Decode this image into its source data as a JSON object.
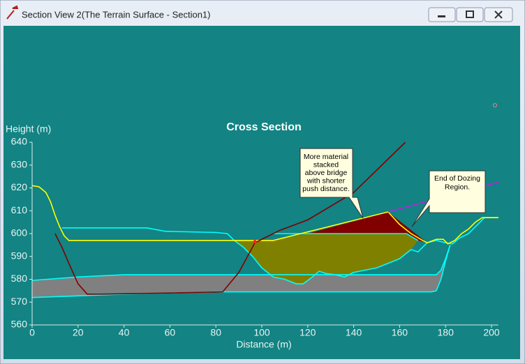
{
  "window": {
    "title": "Section View 2(The Terrain Surface - Section1)"
  },
  "chart_data": {
    "type": "line",
    "title": "Cross Section",
    "x_label": "Distance (m)",
    "y_label": "Height (m)",
    "xlim": [
      0,
      203
    ],
    "ylim": [
      560,
      640
    ],
    "xticks": [
      0,
      20,
      40,
      60,
      80,
      100,
      120,
      140,
      160,
      180,
      200
    ],
    "yticks": [
      560,
      570,
      580,
      590,
      600,
      610,
      620,
      630,
      640
    ],
    "areas": [
      {
        "color": "#808080",
        "x": [
          0,
          20,
          40,
          176,
          178,
          180,
          182,
          180,
          178,
          176,
          174,
          80,
          40,
          0
        ],
        "values": [
          579.5,
          581,
          582,
          582,
          584,
          589,
          595,
          588,
          580,
          575,
          574.5,
          574.5,
          573.5,
          572
        ]
      },
      {
        "color": "#808000",
        "x": [
          86,
          105,
          120,
          163,
          168,
          165,
          160,
          155,
          150,
          145,
          140,
          136,
          132,
          128,
          125,
          122,
          118,
          115,
          110,
          105,
          100,
          96,
          92,
          88
        ],
        "values": [
          597,
          597,
          600,
          600,
          597,
          593,
          589,
          587,
          585,
          584,
          583,
          581,
          582,
          582.5,
          583.5,
          581,
          578,
          578,
          580,
          581,
          585,
          590,
          594,
          597
        ]
      },
      {
        "color": "#800000",
        "x": [
          120,
          155,
          172,
          168,
          163
        ],
        "values": [
          600,
          609.5,
          596,
          597,
          600
        ]
      }
    ],
    "series": [
      {
        "color": "#00ffff",
        "x": [
          0,
          20,
          40,
          176,
          178,
          180,
          182
        ],
        "values": [
          579.5,
          581,
          582,
          582,
          584,
          589,
          595
        ]
      },
      {
        "color": "#00ffff",
        "x": [
          0,
          40,
          80,
          174,
          176,
          178,
          180,
          182
        ],
        "values": [
          572,
          573.5,
          574.5,
          574.5,
          575,
          580,
          588,
          595
        ]
      },
      {
        "color": "#00ffff",
        "x": [
          105,
          163,
          168
        ],
        "values": [
          600,
          600,
          597
        ]
      },
      {
        "color": "#00ffff",
        "x": [
          13,
          50,
          58,
          80,
          85,
          88,
          92,
          96,
          100,
          105,
          110,
          115,
          118,
          122,
          125,
          128,
          132,
          136,
          140,
          145,
          150,
          155,
          160,
          165,
          168,
          172,
          176,
          180,
          183,
          186,
          190,
          194,
          197,
          200,
          203
        ],
        "values": [
          602.5,
          602.5,
          601,
          600.5,
          600,
          597,
          594,
          590,
          585,
          581,
          580,
          578,
          578,
          581,
          583.5,
          582.5,
          582,
          581,
          583,
          584,
          585,
          587,
          589,
          593,
          592,
          596,
          597,
          596,
          595.5,
          598,
          600,
          604,
          607,
          607,
          607
        ]
      },
      {
        "color": "#ffff00",
        "x": [
          0,
          3,
          6,
          8,
          10,
          12,
          14,
          16,
          40,
          105,
          155,
          160,
          165,
          170,
          172,
          176,
          179,
          181,
          184,
          187,
          190,
          193,
          196,
          200,
          203
        ],
        "values": [
          621,
          620.5,
          618,
          614,
          608,
          603,
          599,
          597,
          597,
          597,
          609.5,
          604,
          600,
          597,
          596,
          597.5,
          597.5,
          595.5,
          597,
          600,
          602,
          605,
          607,
          607,
          607
        ]
      },
      {
        "color": "#800000",
        "x": [
          10,
          13,
          16,
          20,
          24,
          30,
          60,
          83,
          90,
          97,
          108,
          120,
          140,
          162.5
        ],
        "values": [
          600,
          594,
          587,
          578,
          573.5,
          573.5,
          574,
          574.5,
          583,
          596,
          601.5,
          606,
          618,
          640
        ]
      },
      {
        "color": "#c020e0",
        "x": [
          155,
          203
        ],
        "values": [
          609.5,
          622.5
        ]
      }
    ],
    "points": [
      {
        "color": "#ff2020",
        "x": 97,
        "value": 596.5
      }
    ],
    "annotations": [
      {
        "lines": [
          "More material",
          "stacked",
          "above bridge",
          "with shorter",
          "push distance."
        ]
      },
      {
        "lines": [
          "End of Dozing",
          "Region."
        ]
      }
    ]
  }
}
